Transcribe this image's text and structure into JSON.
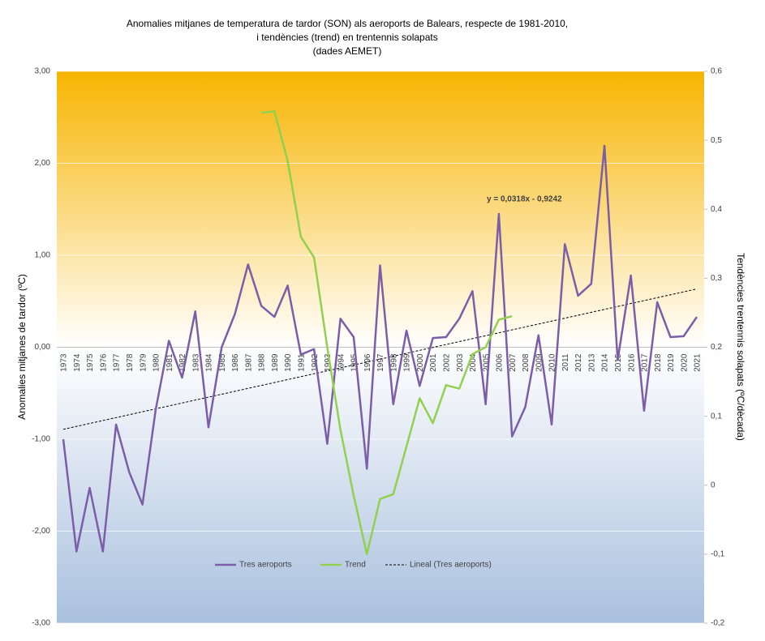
{
  "chart_data": {
    "type": "line",
    "title": [
      "Anomalies mitjanes de temperatura de tardor (SON) als aeroports de Balears, respecte de 1981-2010,",
      "i tendències (trend) en trentennis solapats",
      "(dades AEMET)"
    ],
    "y_label": "Anomalies mitjanes de tardor (ºC)",
    "y2_label": "Tendències trentennis solapats (ºC/dècada)",
    "categories": [
      "1973",
      "1974",
      "1975",
      "1976",
      "1977",
      "1978",
      "1979",
      "1980",
      "1981",
      "1982",
      "1983",
      "1984",
      "1985",
      "1986",
      "1987",
      "1988",
      "1989",
      "1990",
      "1991",
      "1992",
      "1993",
      "1994",
      "1995",
      "1996",
      "1997",
      "1998",
      "1999",
      "2000",
      "2001",
      "2002",
      "2003",
      "2004",
      "2005",
      "2006",
      "2007",
      "2008",
      "2009",
      "2010",
      "2011",
      "2012",
      "2013",
      "2014",
      "2015",
      "2016",
      "2017",
      "2018",
      "2019",
      "2020",
      "2021"
    ],
    "series": [
      {
        "name": "Tres aeroports",
        "color": "#7b5ea7",
        "axis": "y",
        "values": [
          -1.0,
          -2.22,
          -1.53,
          -2.22,
          -0.84,
          -1.36,
          -1.71,
          -0.68,
          0.07,
          -0.33,
          0.39,
          -0.87,
          0.0,
          0.36,
          0.9,
          0.45,
          0.33,
          0.67,
          -0.08,
          -0.02,
          -1.05,
          0.31,
          0.11,
          -1.32,
          0.89,
          -0.62,
          0.18,
          -0.42,
          0.1,
          0.11,
          0.31,
          0.61,
          -0.62,
          1.45,
          -0.97,
          -0.65,
          0.13,
          -0.84,
          1.12,
          0.56,
          0.69,
          2.19,
          -0.14,
          0.78,
          -0.69,
          0.49,
          0.11,
          0.12,
          0.33
        ]
      },
      {
        "name": "Trend",
        "color": "#92d050",
        "axis": "y2",
        "values": [
          null,
          null,
          null,
          null,
          null,
          null,
          null,
          null,
          null,
          null,
          null,
          null,
          null,
          null,
          null,
          0.54,
          0.542,
          0.47,
          0.36,
          0.33,
          0.2,
          0.08,
          -0.015,
          -0.1,
          -0.02,
          -0.013,
          0.056,
          0.126,
          0.09,
          0.145,
          0.14,
          0.19,
          0.2,
          0.24,
          0.245,
          null,
          null,
          null,
          null,
          null,
          null,
          null,
          null,
          null,
          null,
          null,
          null,
          null,
          null
        ]
      }
    ],
    "trendline": {
      "name": "Lineal (Tres aeroports)",
      "slope": 0.0318,
      "intercept": -0.9242,
      "label": "y = 0,0318x - 0,9242",
      "color": "#000000"
    },
    "ylim": [
      -3,
      3
    ],
    "yticks": [
      {
        "value": -3,
        "label": "-3,00"
      },
      {
        "value": -2,
        "label": "-2,00"
      },
      {
        "value": -1,
        "label": "-1,00"
      },
      {
        "value": 0,
        "label": "0,00"
      },
      {
        "value": 1,
        "label": "1,00"
      },
      {
        "value": 2,
        "label": "2,00"
      },
      {
        "value": 3,
        "label": "3,00"
      }
    ],
    "y2lim": [
      -0.2,
      0.6
    ],
    "y2ticks": [
      {
        "value": -0.2,
        "label": "-0,2"
      },
      {
        "value": -0.1,
        "label": "-0,1"
      },
      0,
      {
        "value": 0.1,
        "label": "0,1"
      },
      {
        "value": 0.2,
        "label": "0,2"
      },
      {
        "value": 0.3,
        "label": "0,3"
      },
      {
        "value": 0.4,
        "label": "0,4"
      },
      {
        "value": 0.5,
        "label": "0,5"
      },
      {
        "value": 0.6,
        "label": "0,6"
      }
    ],
    "grid": true,
    "legend": "bottom"
  }
}
